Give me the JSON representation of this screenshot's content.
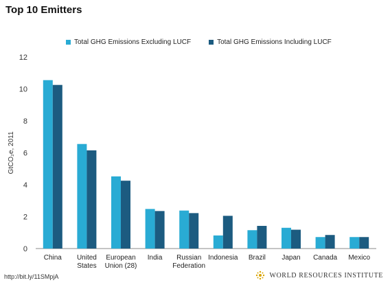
{
  "chart_data": {
    "type": "bar",
    "title": "Top 10 Emitters",
    "ylabel": "GtCO₂e, 2011",
    "ylim": [
      0,
      12
    ],
    "yticks": [
      0,
      2,
      4,
      6,
      8,
      10,
      12
    ],
    "grid": false,
    "legend_position": "top",
    "categories": [
      "China",
      "United States",
      "European Union (28)",
      "India",
      "Russian Federation",
      "Indonesia",
      "Brazil",
      "Japan",
      "Canada",
      "Mexico"
    ],
    "category_lines": [
      [
        "China"
      ],
      [
        "United",
        "States"
      ],
      [
        "European",
        "Union (28)"
      ],
      [
        "India"
      ],
      [
        "Russian",
        "Federation"
      ],
      [
        "Indonesia"
      ],
      [
        "Brazil"
      ],
      [
        "Japan"
      ],
      [
        "Canada"
      ],
      [
        "Mexico"
      ]
    ],
    "series": [
      {
        "name": "Total GHG Emissions Excluding LUCF",
        "color": "#29abd4",
        "values": [
          10.55,
          6.55,
          4.52,
          2.48,
          2.38,
          0.82,
          1.15,
          1.3,
          0.72,
          0.72
        ]
      },
      {
        "name": "Total GHG Emissions Including LUCF",
        "color": "#1c5b80",
        "values": [
          10.25,
          6.15,
          4.25,
          2.35,
          2.22,
          2.05,
          1.42,
          1.18,
          0.85,
          0.72
        ]
      }
    ]
  },
  "footer": {
    "link": "http://bit.ly/11SMpjA",
    "org": "WORLD RESOURCES INSTITUTE"
  }
}
